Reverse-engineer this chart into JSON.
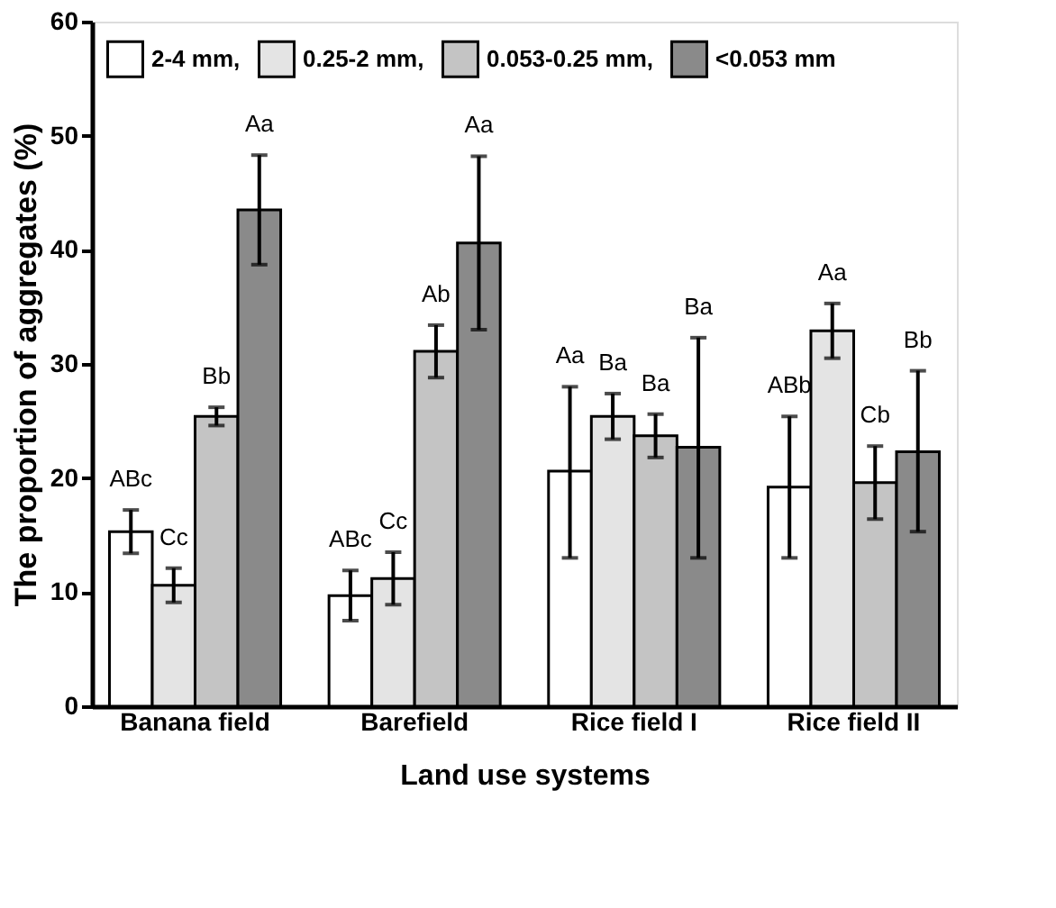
{
  "chart_data": {
    "type": "bar",
    "xlabel": "Land use systems",
    "ylabel": "The proportion of aggregates (%)",
    "categories": [
      "Banana field",
      "Barefield",
      "Rice field I",
      "Rice field II"
    ],
    "series": [
      {
        "name": "2-4 mm,",
        "color": "#ffffff",
        "values": [
          15.3,
          9.7,
          20.6,
          19.2
        ],
        "errors": [
          1.9,
          2.2,
          [
            13.0,
            28.0
          ],
          [
            13.0,
            25.4
          ]
        ]
      },
      {
        "name": "0.25-2 mm,",
        "color": "#e4e4e4",
        "values": [
          10.6,
          11.2,
          25.4,
          32.9
        ],
        "errors": [
          1.5,
          2.3,
          [
            23.4,
            27.4
          ],
          [
            30.5,
            35.3
          ]
        ]
      },
      {
        "name": "0.053-0.25 mm,",
        "color": "#c4c4c4",
        "values": [
          25.4,
          31.1,
          23.7,
          19.6
        ],
        "errors": [
          0.8,
          2.3,
          [
            21.8,
            25.6
          ],
          [
            16.4,
            22.8
          ]
        ]
      },
      {
        "name": "<0.053 mm",
        "color": "#8a8a8a",
        "values": [
          43.5,
          40.6,
          22.7,
          22.3
        ],
        "errors": [
          4.8,
          7.6,
          [
            13.0,
            32.3
          ],
          [
            15.3,
            29.4
          ]
        ]
      }
    ],
    "annotations": [
      "ABc",
      "Cc",
      "Bb",
      "Aa",
      "ABc",
      "Cc",
      "Ab",
      "Aa",
      "Aa",
      "Ba",
      "Ba",
      "Ba",
      "ABb",
      "Aa",
      "Cb",
      "Bb"
    ],
    "ylim": [
      0,
      60
    ],
    "yticks": [
      0,
      10,
      20,
      30,
      40,
      50,
      60
    ],
    "grid": false,
    "legend": "top"
  }
}
